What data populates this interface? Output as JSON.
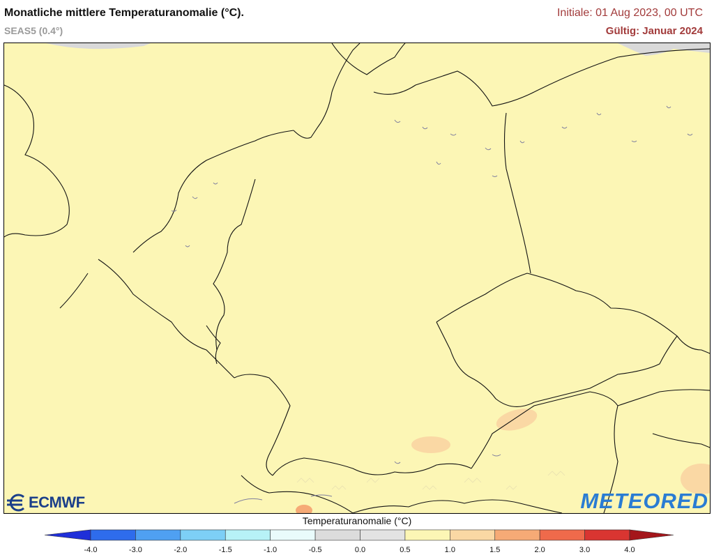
{
  "header": {
    "title": "Monatliche mittlere Temperaturanomalie (°C).",
    "subtitle": "SEAS5 (0.4°)",
    "initial": "Initiale: 01 Aug 2023, 00 UTC",
    "valid": "Gültig: Januar 2024"
  },
  "logos": {
    "left": "ECMWF",
    "right": "METEORED"
  },
  "map": {
    "base_anomaly_color": "#fcf6b5",
    "highlight_color": "#fad8a4",
    "land_color": "#fcf6b5",
    "border_color": "#111111",
    "lake_color": "#7f7f9e",
    "no_data_color": "#d9d9d9"
  },
  "legend": {
    "title": "Temperaturanomalie (°C)",
    "ticks": [
      "-4.0",
      "-3.0",
      "-2.0",
      "-1.5",
      "-1.0",
      "-0.5",
      "0.0",
      "0.5",
      "1.0",
      "1.5",
      "2.0",
      "3.0",
      "4.0"
    ],
    "colors": [
      "#1f2fd9",
      "#2e6cec",
      "#4fa0f2",
      "#7dcff6",
      "#b7f2f7",
      "#e9fbfb",
      "#dcdcdc",
      "#e3e3e3",
      "#fcf6b5",
      "#fad8a4",
      "#f6aa76",
      "#ef6a4b",
      "#d93531",
      "#a4161b"
    ]
  }
}
